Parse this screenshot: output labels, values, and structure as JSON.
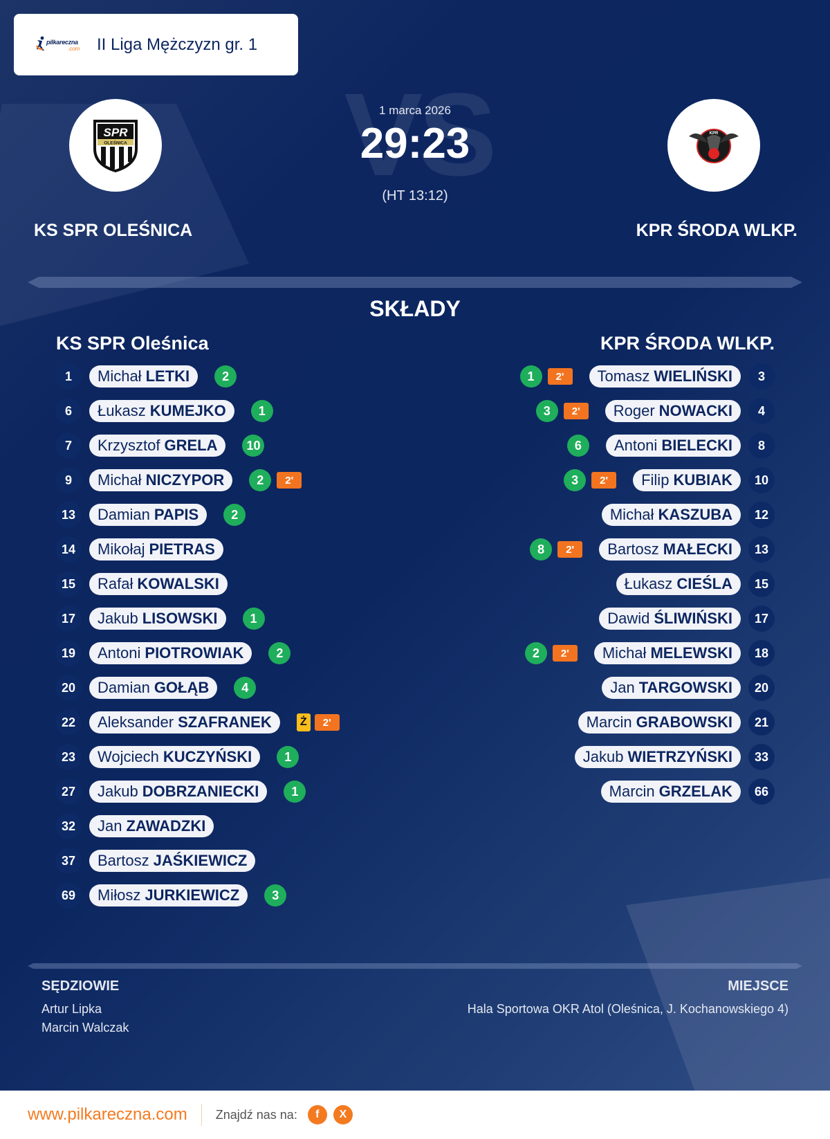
{
  "header": {
    "brand": {
      "name": "pilkareczna",
      "suffix": ".com"
    },
    "league": "II Liga Mężczyzn gr. 1"
  },
  "match": {
    "date": "1 marca 2026",
    "score": "29:23",
    "halftime": "(HT 13:12)",
    "vs_watermark": "VS",
    "home": {
      "name": "KS SPR OLEŚNICA",
      "logo": "spr-olesnica-crest"
    },
    "away": {
      "name": "KPR ŚRODA WLKP.",
      "logo": "kpr-sroda-eagle-crest"
    }
  },
  "squads": {
    "title": "SKŁADY",
    "home": {
      "name": "KS SPR Oleśnica",
      "players": [
        {
          "number": "1",
          "first": "Michał",
          "last": "LETKI",
          "goals": "2",
          "yellow": null,
          "suspension": null
        },
        {
          "number": "6",
          "first": "Łukasz",
          "last": "KUMEJKO",
          "goals": "1",
          "yellow": null,
          "suspension": null
        },
        {
          "number": "7",
          "first": "Krzysztof",
          "last": "GRELA",
          "goals": "10",
          "yellow": null,
          "suspension": null
        },
        {
          "number": "9",
          "first": "Michał",
          "last": "NICZYPOR",
          "goals": "2",
          "yellow": null,
          "suspension": "2'"
        },
        {
          "number": "13",
          "first": "Damian",
          "last": "PAPIS",
          "goals": "2",
          "yellow": null,
          "suspension": null
        },
        {
          "number": "14",
          "first": "Mikołaj",
          "last": "PIETRAS",
          "goals": null,
          "yellow": null,
          "suspension": null
        },
        {
          "number": "15",
          "first": "Rafał",
          "last": "KOWALSKI",
          "goals": null,
          "yellow": null,
          "suspension": null
        },
        {
          "number": "17",
          "first": "Jakub",
          "last": "LISOWSKI",
          "goals": "1",
          "yellow": null,
          "suspension": null
        },
        {
          "number": "19",
          "first": "Antoni",
          "last": "PIOTROWIAK",
          "goals": "2",
          "yellow": null,
          "suspension": null
        },
        {
          "number": "20",
          "first": "Damian",
          "last": "GOŁĄB",
          "goals": "4",
          "yellow": null,
          "suspension": null
        },
        {
          "number": "22",
          "first": "Aleksander",
          "last": "SZAFRANEK",
          "goals": null,
          "yellow": "Ż",
          "suspension": "2'"
        },
        {
          "number": "23",
          "first": "Wojciech",
          "last": "KUCZYŃSKI",
          "goals": "1",
          "yellow": null,
          "suspension": null
        },
        {
          "number": "27",
          "first": "Jakub",
          "last": "DOBRZANIECKI",
          "goals": "1",
          "yellow": null,
          "suspension": null
        },
        {
          "number": "32",
          "first": "Jan",
          "last": "ZAWADZKI",
          "goals": null,
          "yellow": null,
          "suspension": null
        },
        {
          "number": "37",
          "first": "Bartosz",
          "last": "JAŚKIEWICZ",
          "goals": null,
          "yellow": null,
          "suspension": null
        },
        {
          "number": "69",
          "first": "Miłosz",
          "last": "JURKIEWICZ",
          "goals": "3",
          "yellow": null,
          "suspension": null
        }
      ]
    },
    "away": {
      "name": "KPR ŚRODA WLKP.",
      "players": [
        {
          "number": "3",
          "first": "Tomasz",
          "last": "WIELIŃSKI",
          "goals": "1",
          "yellow": null,
          "suspension": "2'"
        },
        {
          "number": "4",
          "first": "Roger",
          "last": "NOWACKI",
          "goals": "3",
          "yellow": null,
          "suspension": "2'"
        },
        {
          "number": "8",
          "first": "Antoni",
          "last": "BIELECKI",
          "goals": "6",
          "yellow": null,
          "suspension": null
        },
        {
          "number": "10",
          "first": "Filip",
          "last": "KUBIAK",
          "goals": "3",
          "yellow": null,
          "suspension": "2'"
        },
        {
          "number": "12",
          "first": "Michał",
          "last": "KASZUBA",
          "goals": null,
          "yellow": null,
          "suspension": null
        },
        {
          "number": "13",
          "first": "Bartosz",
          "last": "MAŁECKI",
          "goals": "8",
          "yellow": null,
          "suspension": "2'"
        },
        {
          "number": "15",
          "first": "Łukasz",
          "last": "CIEŚLA",
          "goals": null,
          "yellow": null,
          "suspension": null
        },
        {
          "number": "17",
          "first": "Dawid",
          "last": "ŚLIWIŃSKI",
          "goals": null,
          "yellow": null,
          "suspension": null
        },
        {
          "number": "18",
          "first": "Michał",
          "last": "MELEWSKI",
          "goals": "2",
          "yellow": null,
          "suspension": "2'"
        },
        {
          "number": "20",
          "first": "Jan",
          "last": "TARGOWSKI",
          "goals": null,
          "yellow": null,
          "suspension": null
        },
        {
          "number": "21",
          "first": "Marcin",
          "last": "GRABOWSKI",
          "goals": null,
          "yellow": null,
          "suspension": null
        },
        {
          "number": "33",
          "first": "Jakub",
          "last": "WIETRZYŃSKI",
          "goals": null,
          "yellow": null,
          "suspension": null
        },
        {
          "number": "66",
          "first": "Marcin",
          "last": "GRZELAK",
          "goals": null,
          "yellow": null,
          "suspension": null
        }
      ]
    }
  },
  "officials": {
    "label": "SĘDZIOWIE",
    "names": [
      "Artur Lipka",
      "Marcin Walczak"
    ]
  },
  "venue": {
    "label": "MIEJSCE",
    "text": "Hala Sportowa OKR Atol (Oleśnica, J. Kochanowskiego 4)"
  },
  "footer": {
    "site": "www.pilkareczna.com",
    "find_us": "Znajdź nas na:",
    "social": [
      {
        "icon": "facebook-icon",
        "glyph": "f"
      },
      {
        "icon": "x-icon",
        "glyph": "X"
      }
    ]
  },
  "colors": {
    "background": "#0c2660",
    "pill": "#f1f3f8",
    "text_dark": "#0d2660",
    "goal": "#1fae5b",
    "suspension": "#f37420",
    "yellow_card": "#fbbd1c",
    "brand_orange": "#f47a20"
  }
}
